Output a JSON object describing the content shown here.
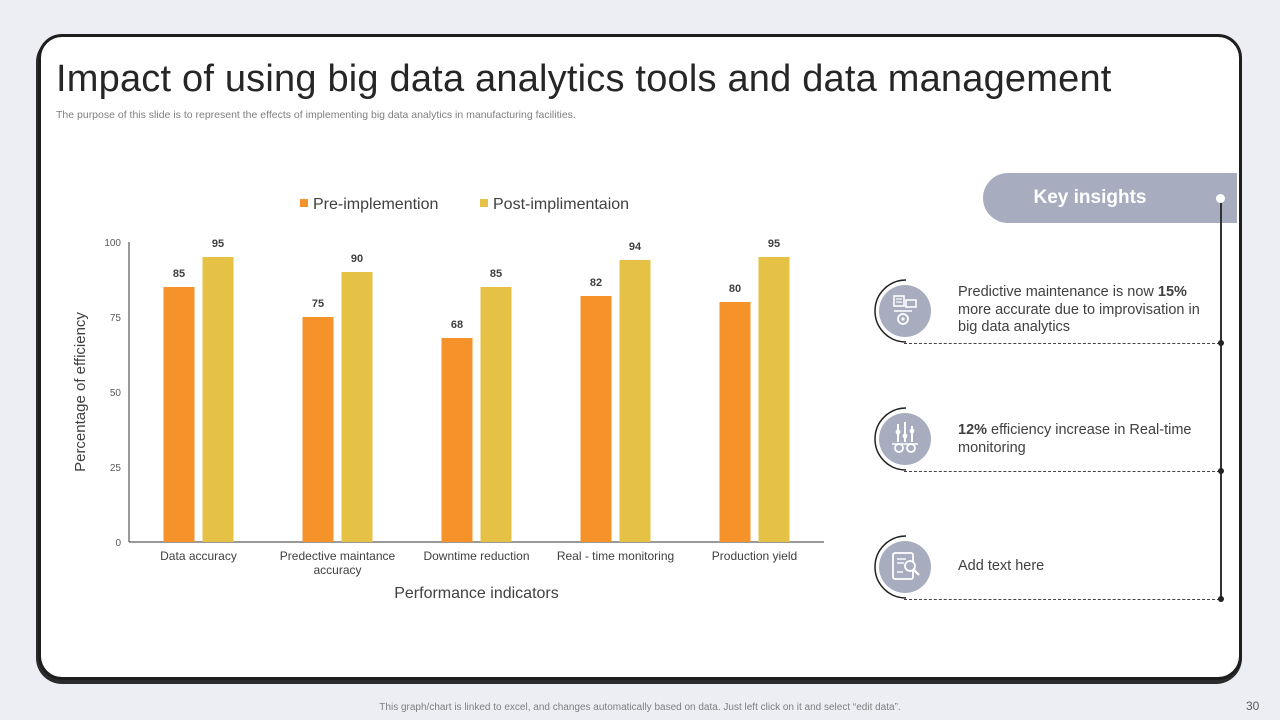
{
  "title": "Impact of using big data analytics tools and data management",
  "subtitle": "The purpose of this slide is to represent the effects of implementing big data analytics in manufacturing facilities.",
  "colors": {
    "pre": "#f5922a",
    "post": "#e5c245",
    "accent": "#a7adbf"
  },
  "chart_data": {
    "type": "bar",
    "title": "",
    "categories": [
      "Data accuracy",
      "Predective maintance accuracy",
      "Downtime reduction",
      "Real - time monitoring",
      "Production yield"
    ],
    "category_lines": [
      [
        "Data accuracy"
      ],
      [
        "Predective maintance",
        "accuracy"
      ],
      [
        "Downtime reduction"
      ],
      [
        "Real - time monitoring"
      ],
      [
        "Production yield"
      ]
    ],
    "series": [
      {
        "name": "Pre-implemention",
        "values": [
          85,
          75,
          68,
          82,
          80
        ]
      },
      {
        "name": "Post-implimentaion",
        "values": [
          95,
          90,
          85,
          94,
          95
        ]
      }
    ],
    "xlabel": "Performance indicators",
    "ylabel": "Percentage of efficiency",
    "ylim": [
      0,
      100
    ],
    "yticks": [
      0,
      25,
      50,
      75,
      100
    ],
    "legend": "top"
  },
  "insights": {
    "heading": "Key insights",
    "items": [
      {
        "icon": "maintenance-icon",
        "pre": "Predictive maintenance is now ",
        "bold": "15%",
        "post": " more accurate due to improvisation in big data analytics"
      },
      {
        "icon": "monitoring-icon",
        "pre": "",
        "bold": "12%",
        "post": " efficiency increase in Real-time monitoring"
      },
      {
        "icon": "report-icon",
        "pre": "Add text here",
        "bold": "",
        "post": ""
      }
    ]
  },
  "footer": "This graph/chart is linked to excel, and changes automatically based on data. Just left click on it and select “edit data”.",
  "page_number": "30"
}
